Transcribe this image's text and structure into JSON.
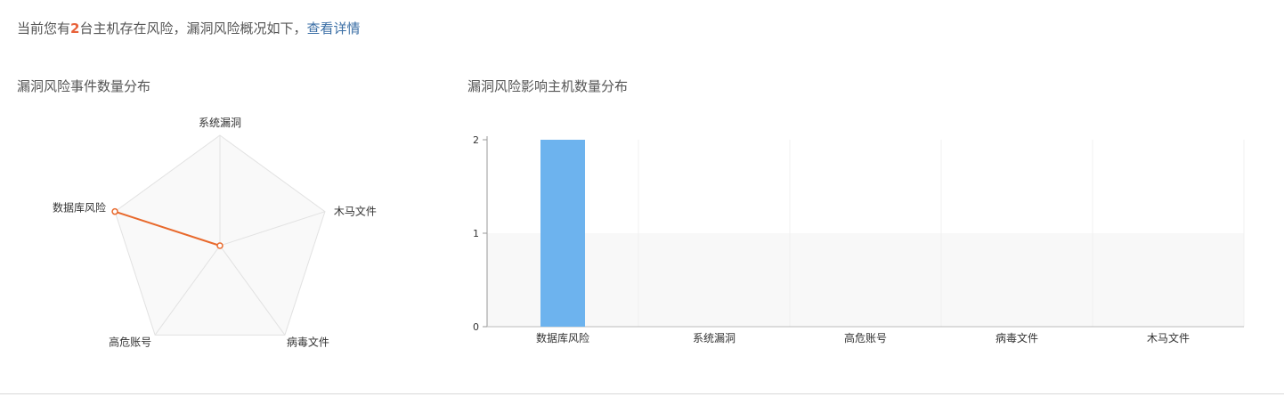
{
  "summary": {
    "prefix": "当前您有",
    "count": "2",
    "suffix": "台主机存在风险，漏洞风险概况如下，",
    "link": "查看详情"
  },
  "charts": {
    "radar_title": "漏洞风险事件数量分布",
    "bar_title": "漏洞风险影响主机数量分布"
  },
  "colors": {
    "radar_line": "#e8692c",
    "bar_fill": "#6db3ee",
    "highlight": "#e8623a",
    "link": "#3a6ea5"
  },
  "chart_data": [
    {
      "type": "radar",
      "title": "漏洞风险事件数量分布",
      "indicators": [
        "系统漏洞",
        "木马文件",
        "病毒文件",
        "高危账号",
        "数据库风险"
      ],
      "values": [
        0,
        0,
        0,
        0,
        2
      ],
      "max": 2,
      "grid": true
    },
    {
      "type": "bar",
      "title": "漏洞风险影响主机数量分布",
      "categories": [
        "数据库风险",
        "系统漏洞",
        "高危账号",
        "病毒文件",
        "木马文件"
      ],
      "values": [
        2,
        0,
        0,
        0,
        0
      ],
      "yticks": [
        0,
        1,
        2
      ],
      "ylim": [
        0,
        2
      ],
      "xlabel": "",
      "ylabel": "",
      "grid": true
    }
  ]
}
